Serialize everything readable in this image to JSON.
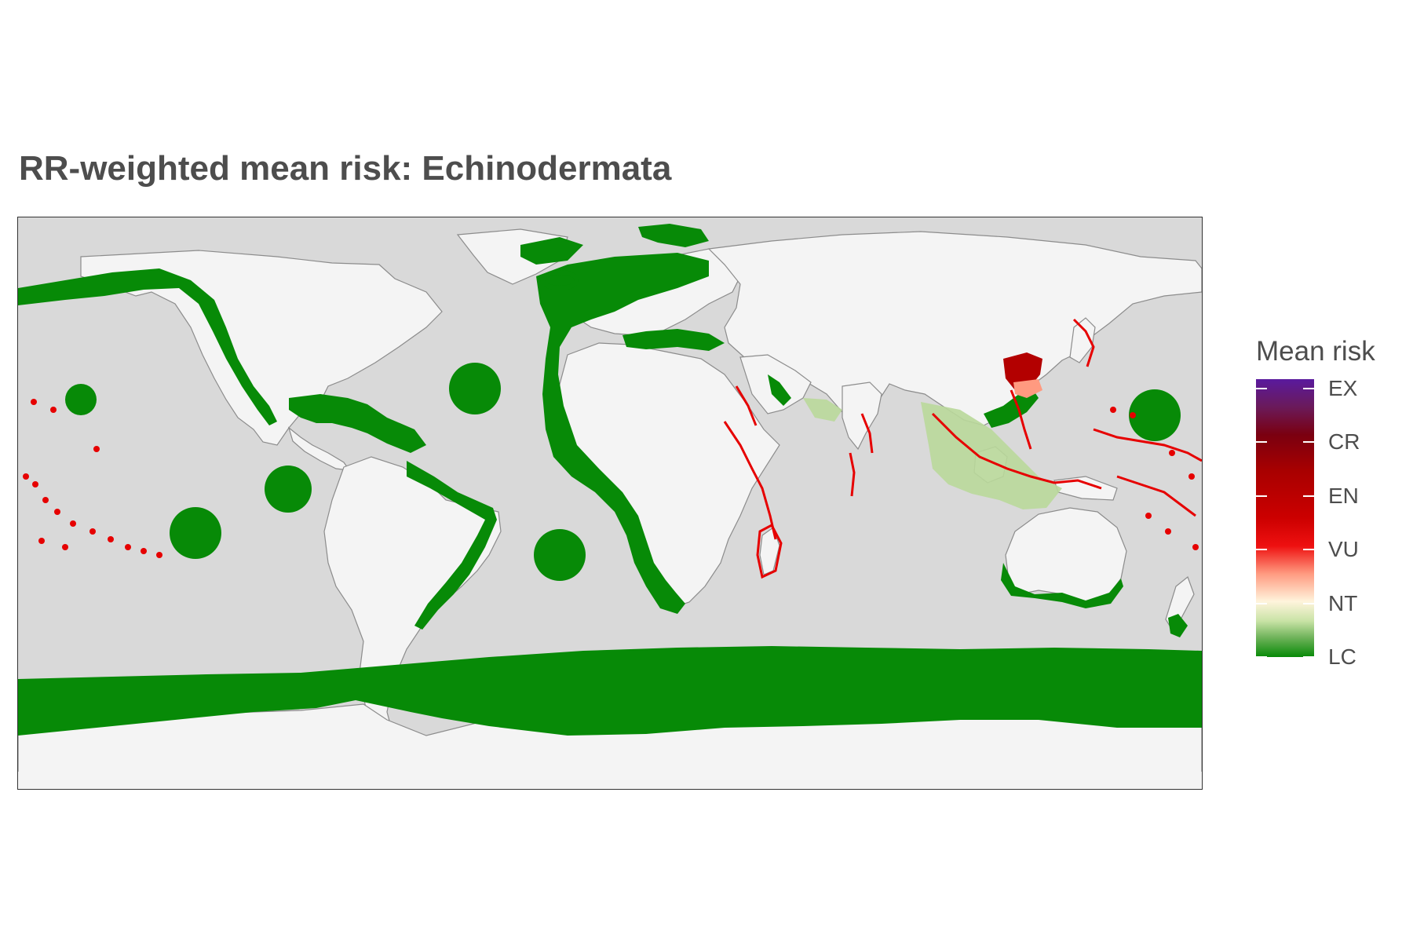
{
  "title": "RR-weighted mean risk: Echinodermata",
  "legend": {
    "title": "Mean risk",
    "labels": [
      "EX",
      "CR",
      "EN",
      "VU",
      "NT",
      "LC"
    ]
  },
  "colors": {
    "ocean": "#d9d9d9",
    "land": "#f4f4f4",
    "low_risk": "#078a07",
    "vulnerable": "#e60000",
    "near_threatened": "#c9e3a6",
    "extinct": "#5a1a9e"
  }
}
